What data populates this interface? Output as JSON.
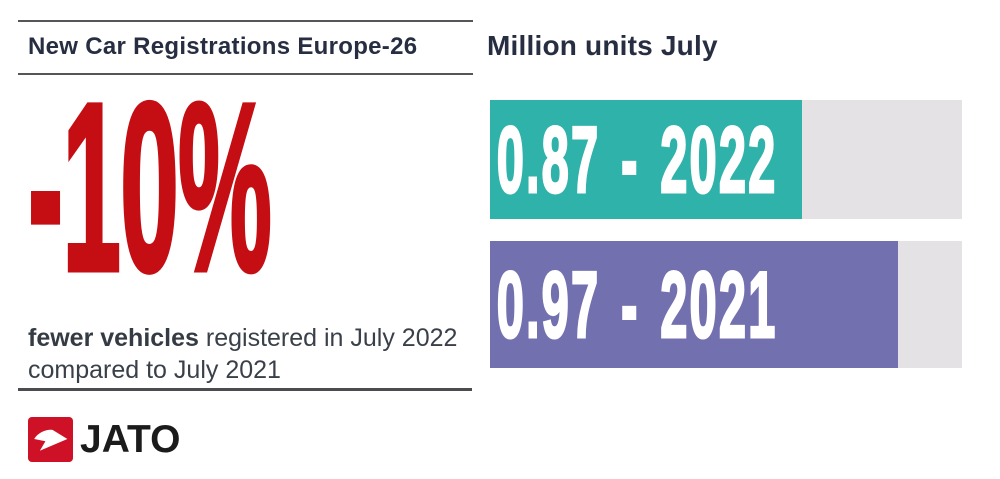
{
  "left_panel": {
    "title": "New Car Registrations Europe-26",
    "stat_value": "-10%",
    "description_emphasis": "fewer vehicles",
    "description_rest": " registered in July 2022 compared to July 2021"
  },
  "chart": {
    "title": "Million units July"
  },
  "chart_data": {
    "type": "bar",
    "orientation": "horizontal",
    "title": "Million units July",
    "unit": "million units",
    "categories": [
      "2022",
      "2021"
    ],
    "values": [
      0.87,
      0.97
    ],
    "bars": [
      {
        "label": "0.87 - 2022",
        "value": 0.87,
        "year": "2022",
        "color": "#2FB2A9",
        "fill_percent": 66.1
      },
      {
        "label": "0.97 - 2021",
        "value": 0.97,
        "year": "2021",
        "color": "#7370B0",
        "fill_percent": 86.4
      }
    ],
    "track_color": "#E4E2E4",
    "legend": "none",
    "axes": "none",
    "grid": false
  },
  "logo": {
    "name": "JATO",
    "text": "JATO",
    "icon": "jato-arrow-icon",
    "icon_color": "#CE1126"
  },
  "colors": {
    "accent_red": "#C40E13",
    "navy_text": "#272E42",
    "body_text": "#3A4049",
    "teal_bar": "#2FB2A9",
    "purple_bar": "#7370B0",
    "bar_track": "#E4E2E4",
    "divider": "#55565A",
    "logo_red": "#CE1126",
    "logo_black": "#1B1B1B"
  }
}
